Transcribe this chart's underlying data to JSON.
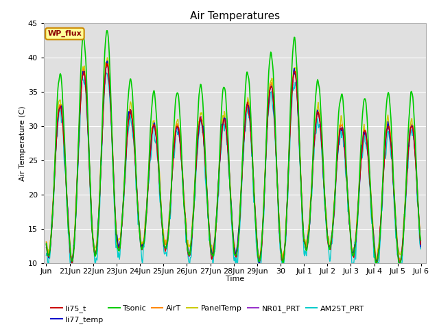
{
  "title": "Air Temperatures",
  "xlabel": "Time",
  "ylabel": "Air Temperature (C)",
  "ylim": [
    10,
    45
  ],
  "background_color": "#ffffff",
  "plot_bg_color": "#e0e0e0",
  "grid_color": "#ffffff",
  "series": {
    "li75_t": {
      "color": "#cc0000",
      "lw": 1.0
    },
    "li77_temp": {
      "color": "#0000cc",
      "lw": 1.0
    },
    "Tsonic": {
      "color": "#00cc00",
      "lw": 1.2
    },
    "AirT": {
      "color": "#ff8800",
      "lw": 1.0
    },
    "PanelTemp": {
      "color": "#cccc00",
      "lw": 1.0
    },
    "NR01_PRT": {
      "color": "#9933cc",
      "lw": 1.0
    },
    "AM25T_PRT": {
      "color": "#00cccc",
      "lw": 1.0
    }
  },
  "tick_labels": [
    "Jun",
    "21Jun",
    "22Jun",
    "23Jun",
    "24Jun",
    "25Jun",
    "26Jun",
    "27Jun",
    "28Jun",
    "29Jun",
    "30 ",
    "Jul 1",
    "Jul 2",
    "Jul 3",
    "Jul 4",
    "Jul 5",
    "Jul 6"
  ],
  "station_label": "WP_flux",
  "station_label_color": "#8b0000",
  "station_box_color": "#ffff99",
  "station_box_edge": "#cc8800",
  "legend_order": [
    "li75_t",
    "li77_temp",
    "Tsonic",
    "AirT",
    "PanelTemp",
    "NR01_PRT",
    "AM25T_PRT"
  ]
}
